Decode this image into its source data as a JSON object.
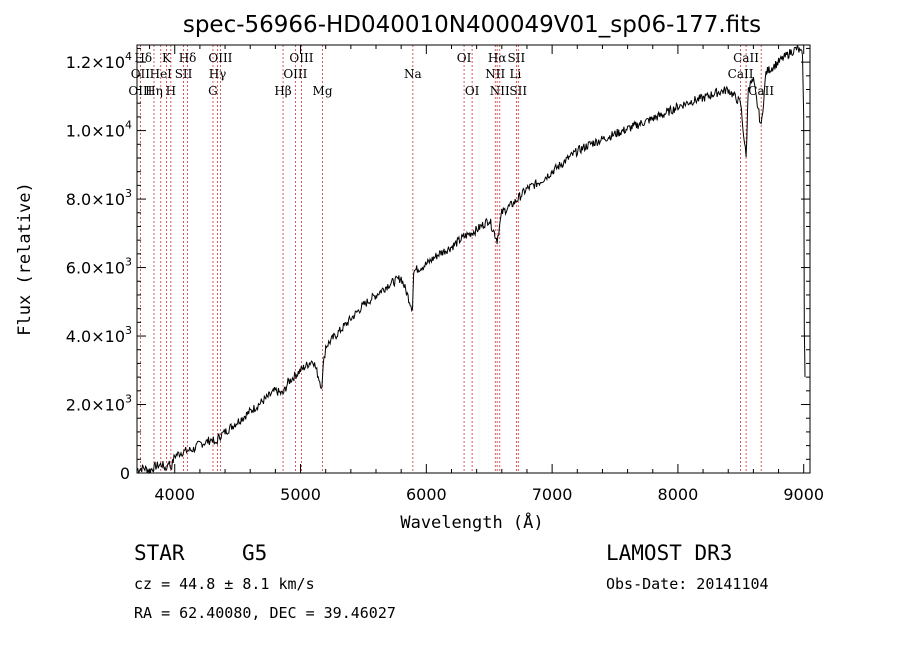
{
  "chart_data": {
    "type": "line",
    "title": "spec-56966-HD040010N400049V01_sp06-177.fits",
    "xlabel": "Wavelength (Å)",
    "ylabel": "Flux (relative)",
    "xlim": [
      3700,
      9050
    ],
    "ylim": [
      0,
      12500
    ],
    "x_ticks": [
      4000,
      5000,
      6000,
      7000,
      8000,
      9000
    ],
    "x_tick_labels": [
      "4000",
      "5000",
      "6000",
      "7000",
      "8000",
      "9000"
    ],
    "y_ticks": [
      0,
      2000,
      4000,
      6000,
      8000,
      10000,
      12000
    ],
    "y_tick_labels": [
      {
        "mantissa": "0",
        "exp": ""
      },
      {
        "mantissa": "2.0×10",
        "exp": "3"
      },
      {
        "mantissa": "4.0×10",
        "exp": "3"
      },
      {
        "mantissa": "6.0×10",
        "exp": "3"
      },
      {
        "mantissa": "8.0×10",
        "exp": "3"
      },
      {
        "mantissa": "1.0×10",
        "exp": "4"
      },
      {
        "mantissa": "1.2×10",
        "exp": "4"
      }
    ],
    "series": [
      {
        "name": "flux",
        "points": [
          [
            3700,
            100
          ],
          [
            3750,
            150
          ],
          [
            3800,
            80
          ],
          [
            3850,
            200
          ],
          [
            3900,
            250
          ],
          [
            3935,
            100
          ],
          [
            3950,
            350
          ],
          [
            3970,
            150
          ],
          [
            4000,
            500
          ],
          [
            4050,
            600
          ],
          [
            4100,
            650
          ],
          [
            4150,
            700
          ],
          [
            4200,
            850
          ],
          [
            4250,
            900
          ],
          [
            4300,
            1000
          ],
          [
            4320,
            800
          ],
          [
            4350,
            1050
          ],
          [
            4400,
            1200
          ],
          [
            4500,
            1500
          ],
          [
            4600,
            1800
          ],
          [
            4700,
            2100
          ],
          [
            4800,
            2400
          ],
          [
            4861,
            2300
          ],
          [
            4900,
            2650
          ],
          [
            5000,
            3000
          ],
          [
            5100,
            3300
          ],
          [
            5170,
            2500
          ],
          [
            5180,
            3100
          ],
          [
            5200,
            3700
          ],
          [
            5300,
            4100
          ],
          [
            5400,
            4500
          ],
          [
            5500,
            4900
          ],
          [
            5600,
            5200
          ],
          [
            5700,
            5500
          ],
          [
            5800,
            5700
          ],
          [
            5890,
            4800
          ],
          [
            5900,
            5900
          ],
          [
            6000,
            6100
          ],
          [
            6100,
            6400
          ],
          [
            6200,
            6600
          ],
          [
            6300,
            6900
          ],
          [
            6400,
            7100
          ],
          [
            6500,
            7400
          ],
          [
            6563,
            6800
          ],
          [
            6600,
            7600
          ],
          [
            6700,
            7900
          ],
          [
            6800,
            8300
          ],
          [
            6900,
            8500
          ],
          [
            7000,
            8800
          ],
          [
            7100,
            9100
          ],
          [
            7200,
            9400
          ],
          [
            7300,
            9600
          ],
          [
            7400,
            9750
          ],
          [
            7500,
            9900
          ],
          [
            7600,
            10050
          ],
          [
            7700,
            10200
          ],
          [
            7800,
            10350
          ],
          [
            7900,
            10500
          ],
          [
            8000,
            10700
          ],
          [
            8100,
            10850
          ],
          [
            8200,
            10950
          ],
          [
            8300,
            11100
          ],
          [
            8400,
            11200
          ],
          [
            8498,
            10800
          ],
          [
            8542,
            9200
          ],
          [
            8560,
            11300
          ],
          [
            8600,
            11450
          ],
          [
            8662,
            10100
          ],
          [
            8700,
            11700
          ],
          [
            8800,
            12000
          ],
          [
            8900,
            12300
          ],
          [
            8950,
            12400
          ],
          [
            8990,
            12200
          ],
          [
            9000,
            10400
          ],
          [
            9005,
            4200
          ],
          [
            9010,
            2800
          ]
        ]
      }
    ],
    "line_markers": [
      {
        "label": "Hδ",
        "wavelength": 3750,
        "row": 1
      },
      {
        "label": "OII",
        "wavelength": 3727,
        "row": 2
      },
      {
        "label": "OIII",
        "wavelength": 3727,
        "row": 3
      },
      {
        "label": "K",
        "wavelength": 3934,
        "row": 1
      },
      {
        "label": "HeI",
        "wavelength": 3889,
        "row": 2
      },
      {
        "label": "Hη",
        "wavelength": 3835,
        "row": 3
      },
      {
        "label": "H",
        "wavelength": 3969,
        "row": 3
      },
      {
        "label": "SII",
        "wavelength": 4070,
        "row": 2
      },
      {
        "label": "Hδ",
        "wavelength": 4102,
        "row": 1
      },
      {
        "label": "OIII",
        "wavelength": 4363,
        "row": 1
      },
      {
        "label": "Hγ",
        "wavelength": 4340,
        "row": 2
      },
      {
        "label": "G",
        "wavelength": 4304,
        "row": 3
      },
      {
        "label": "OIII",
        "wavelength": 5007,
        "row": 1
      },
      {
        "label": "OIII",
        "wavelength": 4959,
        "row": 2
      },
      {
        "label": "Hβ",
        "wavelength": 4861,
        "row": 3
      },
      {
        "label": "Mg",
        "wavelength": 5175,
        "row": 3
      },
      {
        "label": "Na",
        "wavelength": 5893,
        "row": 2
      },
      {
        "label": "OI",
        "wavelength": 6300,
        "row": 1
      },
      {
        "label": "OI",
        "wavelength": 6364,
        "row": 3
      },
      {
        "label": "Hα",
        "wavelength": 6563,
        "row": 1
      },
      {
        "label": "SII",
        "wavelength": 6716,
        "row": 1
      },
      {
        "label": "NII",
        "wavelength": 6548,
        "row": 2
      },
      {
        "label": "Li",
        "wavelength": 6708,
        "row": 2
      },
      {
        "label": "NII",
        "wavelength": 6584,
        "row": 3
      },
      {
        "label": "SII",
        "wavelength": 6731,
        "row": 3
      },
      {
        "label": "CaII",
        "wavelength": 8542,
        "row": 1
      },
      {
        "label": "CaII",
        "wavelength": 8498,
        "row": 2
      },
      {
        "label": "CaII",
        "wavelength": 8662,
        "row": 3
      }
    ],
    "marker_lines": [
      3727,
      3835,
      3889,
      3934,
      3969,
      4070,
      4102,
      4304,
      4340,
      4363,
      4861,
      4959,
      5007,
      5175,
      5893,
      6300,
      6364,
      6548,
      6563,
      6584,
      6716,
      6731,
      8498,
      8542,
      8662
    ],
    "marker_line_color": "#cc3333",
    "line_color": "#000000"
  },
  "info": {
    "object_class": "STAR",
    "subclass": "G5",
    "survey": "LAMOST DR3",
    "redshift": "cz =  44.8 ± 8.1 km/s",
    "obs_date": "Obs-Date: 20141104",
    "coords": "RA =  62.40080, DEC =  39.46027"
  }
}
